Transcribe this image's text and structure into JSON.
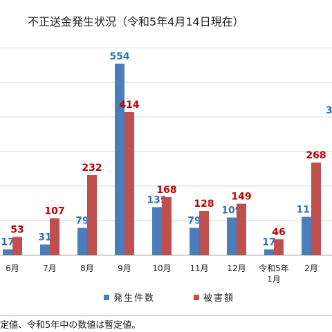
{
  "chart_data": {
    "type": "bar",
    "title": "不正送金発生状況（令和5年4月14日現在）",
    "categories": [
      "6月",
      "7月",
      "8月",
      "9月",
      "10月",
      "11月",
      "12月",
      "令和5年\n1月",
      "2月"
    ],
    "series": [
      {
        "name": "発生件数",
        "color": "#4a7ebb",
        "label_color": "#2e75b6",
        "values": [
          17,
          31,
          79,
          554,
          139,
          79,
          109,
          17,
          111
        ]
      },
      {
        "name": "被害額",
        "color": "#c0504d",
        "label_color": "#c00000",
        "values": [
          53,
          107,
          232,
          414,
          168,
          128,
          149,
          46,
          268
        ]
      }
    ],
    "extra_label": "3",
    "ylim": [
      0,
      600
    ],
    "grid": true,
    "legend": "bottom"
  },
  "note": "定値、令和5年中の数値は暫定値。"
}
